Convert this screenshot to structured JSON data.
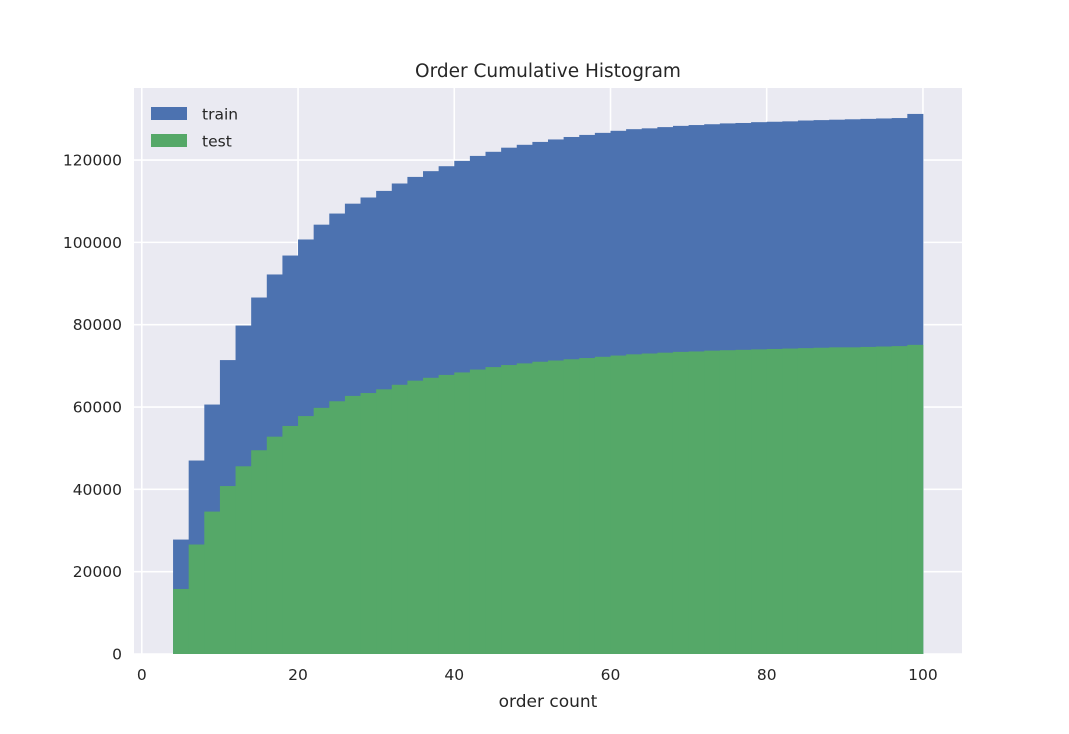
{
  "chart_data": {
    "type": "bar",
    "title": "Order Cumulative Histogram",
    "xlabel": "order count",
    "ylabel": "",
    "xlim": [
      -1,
      105
    ],
    "ylim": [
      0,
      137500
    ],
    "xticks": [
      0,
      20,
      40,
      60,
      80,
      100
    ],
    "yticks": [
      0,
      20000,
      40000,
      60000,
      80000,
      100000,
      120000
    ],
    "grid": true,
    "legend_position": "upper-left",
    "bin_edges": [
      4,
      6,
      8,
      10,
      12,
      14,
      16,
      18,
      20,
      22,
      24,
      26,
      28,
      30,
      32,
      34,
      36,
      38,
      40,
      42,
      44,
      46,
      48,
      50,
      52,
      54,
      56,
      58,
      60,
      62,
      64,
      66,
      68,
      70,
      72,
      74,
      76,
      78,
      80,
      82,
      84,
      86,
      88,
      90,
      92,
      94,
      96,
      98,
      100
    ],
    "series": [
      {
        "name": "train",
        "color": "#4c72b0",
        "values": [
          27800,
          47000,
          60600,
          71400,
          79800,
          86600,
          92200,
          96800,
          100700,
          104300,
          107000,
          109400,
          110900,
          112500,
          114300,
          115900,
          117300,
          118500,
          119800,
          121000,
          122000,
          123000,
          123700,
          124400,
          125000,
          125600,
          126100,
          126600,
          127100,
          127500,
          127700,
          128000,
          128300,
          128500,
          128700,
          128900,
          129000,
          129200,
          129300,
          129400,
          129600,
          129700,
          129800,
          129900,
          130000,
          130100,
          130200,
          131200
        ]
      },
      {
        "name": "test",
        "color": "#55a868",
        "values": [
          15800,
          26600,
          34600,
          40800,
          45600,
          49500,
          52800,
          55400,
          57800,
          59800,
          61400,
          62700,
          63400,
          64300,
          65400,
          66400,
          67100,
          67800,
          68400,
          69100,
          69700,
          70200,
          70600,
          71000,
          71300,
          71600,
          71900,
          72200,
          72500,
          72800,
          73000,
          73200,
          73400,
          73500,
          73700,
          73800,
          73900,
          74000,
          74100,
          74200,
          74300,
          74400,
          74500,
          74500,
          74600,
          74700,
          74800,
          75100
        ]
      }
    ]
  }
}
